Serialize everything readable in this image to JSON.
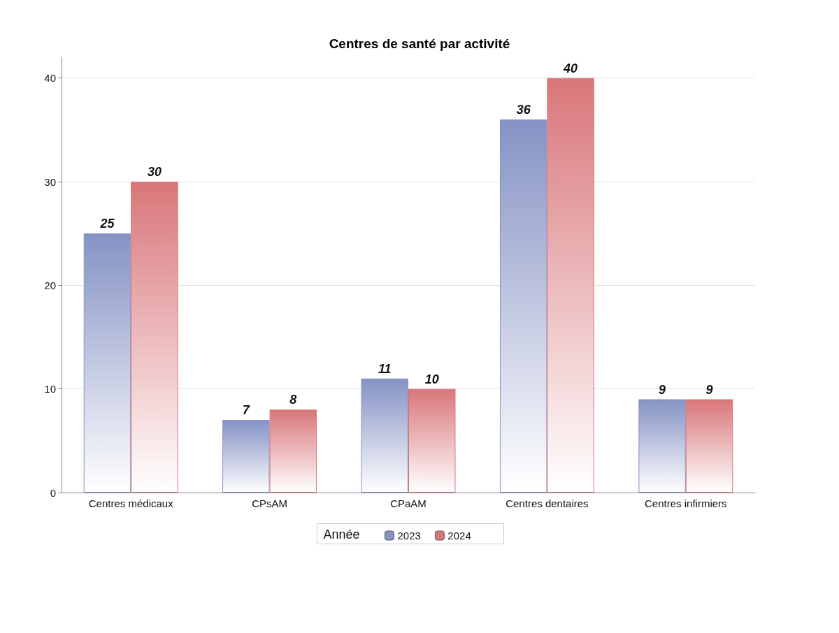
{
  "chart_data": {
    "type": "bar",
    "title": "Centres de santé par activité",
    "legend_title": "Année",
    "categories": [
      "Centres médicaux",
      "CPsAM",
      "CPaAM",
      "Centres dentaires",
      "Centres infirmiers"
    ],
    "series": [
      {
        "name": "2023",
        "color": "#8592c4",
        "values": [
          25,
          7,
          11,
          36,
          9
        ]
      },
      {
        "name": "2024",
        "color": "#d9767a",
        "values": [
          30,
          8,
          10,
          40,
          9
        ]
      }
    ],
    "ylim": [
      0,
      42
    ],
    "yticks": [
      0,
      10,
      20,
      30,
      40
    ],
    "grid": "y",
    "legend": "bottom",
    "data_labels": true
  }
}
